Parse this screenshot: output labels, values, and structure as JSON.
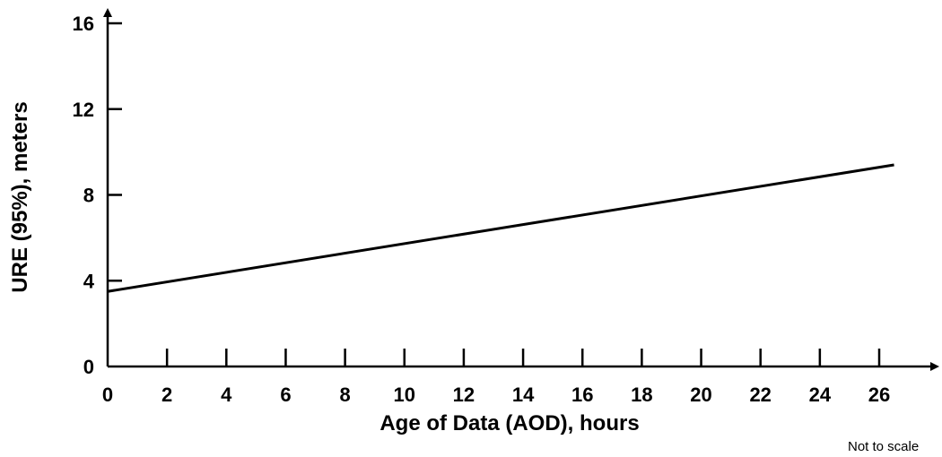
{
  "chart_data": {
    "type": "line",
    "title": "",
    "xlabel": "Age of Data (AOD), hours",
    "ylabel": "URE (95%), meters",
    "xlim": [
      0,
      27.5
    ],
    "ylim": [
      0,
      16
    ],
    "xticks": [
      0,
      2,
      4,
      6,
      8,
      10,
      12,
      14,
      16,
      18,
      20,
      22,
      24,
      26
    ],
    "yticks": [
      0,
      4,
      8,
      12,
      16
    ],
    "grid": false,
    "series": [
      {
        "x": [
          0,
          26.5
        ],
        "y": [
          3.5,
          9.4
        ]
      }
    ],
    "annotation": "Not to scale"
  }
}
